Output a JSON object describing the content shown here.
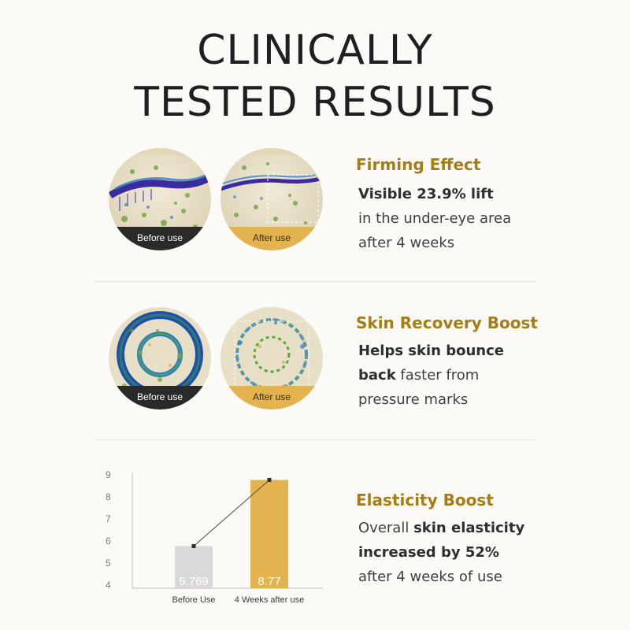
{
  "header": {
    "title_line1": "CLINICALLY",
    "title_line2": "TESTED RESULTS"
  },
  "sections": [
    {
      "before_label": "Before use",
      "after_label": "After use",
      "title": "Firming Effect",
      "line1": "Visible 23.9% lift",
      "line2": "in the under-eye area",
      "line3": "after 4 weeks"
    },
    {
      "before_label": "Before use",
      "after_label": "After use",
      "title": "Skin Recovery Boost",
      "line1": "Helps skin bounce",
      "line2_bold": "back",
      "line2_rest": " faster from",
      "line3": "pressure marks"
    },
    {
      "title": "Elasticity Boost",
      "line1_plain": "Overall ",
      "line1_bold": "skin elasticity",
      "line2": "increased by 52%",
      "line3": "after 4 weeks of use"
    }
  ],
  "colors": {
    "accent": "#a57d14",
    "bar_before": "#d9d9d9",
    "bar_after": "#e3b34f",
    "label_before_bg": "#2b2a29",
    "label_after_bg": "#e3b34f"
  },
  "chart_data": {
    "type": "bar",
    "categories": [
      "Before Use",
      "4 Weeks after use"
    ],
    "values": [
      5.769,
      8.77
    ],
    "value_labels": [
      "5.769",
      "8.77"
    ],
    "ylim": [
      4,
      9
    ],
    "yticks": [
      "4",
      "5",
      "6",
      "7",
      "8",
      "9"
    ],
    "title": "",
    "xlabel": "",
    "ylabel": "",
    "connecting_line": true,
    "grid": false
  }
}
